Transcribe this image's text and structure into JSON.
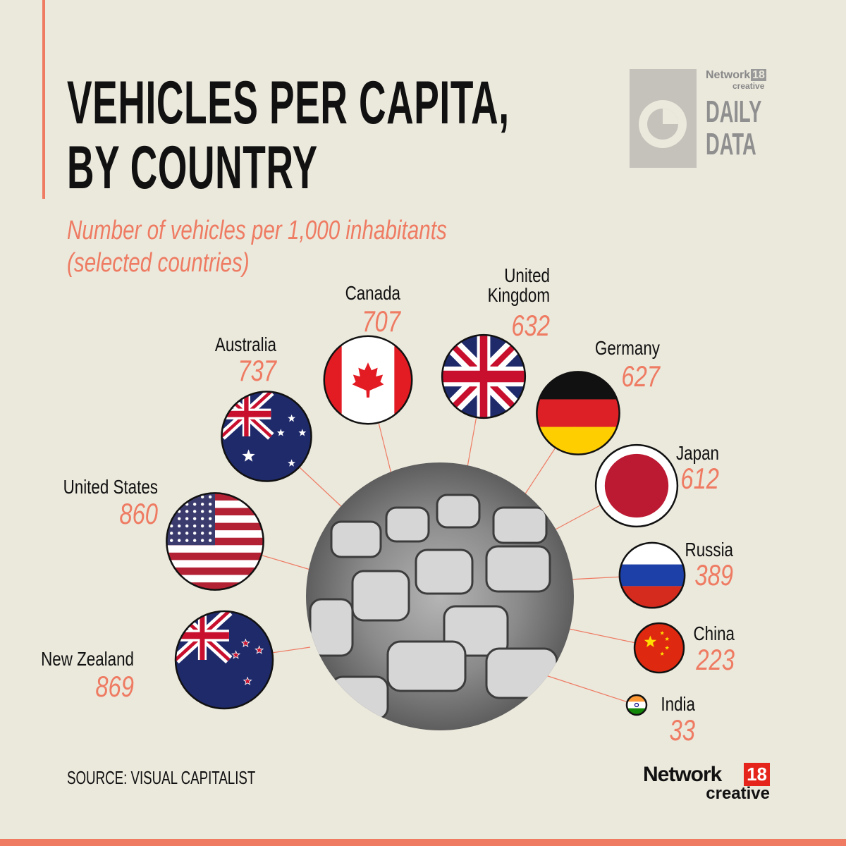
{
  "title": {
    "line1": "VEHICLES PER CAPITA,",
    "line2": "BY COUNTRY"
  },
  "subtitle": {
    "line1": "Number of vehicles per 1,000 inhabitants",
    "line2": "(selected countries)"
  },
  "source": "SOURCE: VISUAL CAPITALIST",
  "header_logo": {
    "network": "Network",
    "number": "18",
    "creative": "creative",
    "line1": "DAILY",
    "line2": "DATA"
  },
  "footer_logo": {
    "network": "Network",
    "number": "18",
    "creative": "creative"
  },
  "colors": {
    "background": "#ebe8dc",
    "accent": "#ee7b62",
    "text": "#111111"
  },
  "chart_data": {
    "type": "bubble",
    "title": "VEHICLES PER CAPITA, BY COUNTRY",
    "subtitle": "Number of vehicles per 1,000 inhabitants (selected countries)",
    "categories": [
      "New Zealand",
      "United States",
      "Australia",
      "Canada",
      "United Kingdom",
      "Germany",
      "Japan",
      "Russia",
      "China",
      "India"
    ],
    "values": [
      869,
      860,
      737,
      707,
      632,
      627,
      612,
      389,
      223,
      33
    ],
    "flags": [
      "nz-flag-icon",
      "us-flag-icon",
      "au-flag-icon",
      "ca-flag-icon",
      "uk-flag-icon",
      "de-flag-icon",
      "jp-flag-icon",
      "ru-flag-icon",
      "cn-flag-icon",
      "in-flag-icon"
    ],
    "center_image": "parked-cars-photo"
  }
}
